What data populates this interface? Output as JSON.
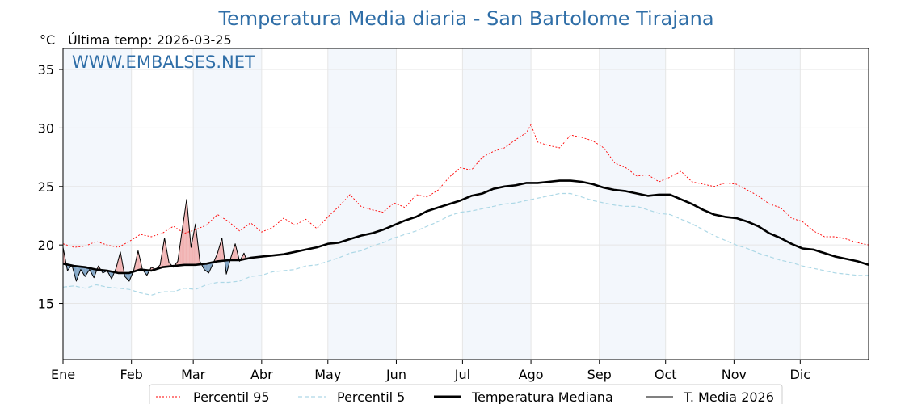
{
  "chart_data": {
    "type": "line",
    "title": "Temperatura Media diaria - San Bartolome Tirajana",
    "unit_label": "°C",
    "last_temp_label": "Última temp: 2026-03-25",
    "watermark": "WWW.EMBALSES.NET",
    "ylim": [
      10.2,
      36.8
    ],
    "xlim": [
      0,
      365
    ],
    "grid": true,
    "legend_position": "bottom",
    "yticks": [
      15,
      20,
      25,
      30,
      35
    ],
    "xticks": [
      {
        "day": 0,
        "label": "Ene"
      },
      {
        "day": 31,
        "label": "Feb"
      },
      {
        "day": 59,
        "label": "Mar"
      },
      {
        "day": 90,
        "label": "Abr"
      },
      {
        "day": 120,
        "label": "May"
      },
      {
        "day": 151,
        "label": "Jun"
      },
      {
        "day": 181,
        "label": "Jul"
      },
      {
        "day": 212,
        "label": "Ago"
      },
      {
        "day": 243,
        "label": "Sep"
      },
      {
        "day": 273,
        "label": "Oct"
      },
      {
        "day": 304,
        "label": "Nov"
      },
      {
        "day": 334,
        "label": "Dic"
      }
    ],
    "series": [
      {
        "name": "Percentil 95",
        "color": "#ff0000",
        "style": "dotted",
        "x": [
          0,
          5,
          10,
          15,
          20,
          25,
          30,
          35,
          40,
          45,
          50,
          55,
          60,
          65,
          70,
          75,
          80,
          85,
          90,
          95,
          100,
          105,
          110,
          115,
          120,
          125,
          130,
          135,
          140,
          145,
          150,
          155,
          160,
          165,
          170,
          175,
          180,
          185,
          190,
          195,
          200,
          205,
          210,
          212,
          215,
          220,
          225,
          230,
          235,
          240,
          245,
          250,
          255,
          260,
          265,
          270,
          275,
          280,
          285,
          290,
          295,
          300,
          305,
          310,
          315,
          320,
          325,
          330,
          335,
          340,
          345,
          350,
          355,
          360,
          365
        ],
        "values": [
          20.1,
          19.8,
          19.9,
          20.3,
          20.0,
          19.8,
          20.3,
          20.9,
          20.7,
          21.0,
          21.6,
          21.0,
          21.3,
          21.7,
          22.6,
          22.0,
          21.2,
          21.9,
          21.1,
          21.5,
          22.3,
          21.7,
          22.2,
          21.4,
          22.4,
          23.3,
          24.3,
          23.3,
          23.0,
          22.8,
          23.6,
          23.2,
          24.3,
          24.1,
          24.7,
          25.8,
          26.6,
          26.4,
          27.5,
          28.0,
          28.3,
          29.0,
          29.6,
          30.3,
          28.8,
          28.5,
          28.3,
          29.4,
          29.2,
          28.9,
          28.3,
          27.0,
          26.6,
          25.9,
          26.0,
          25.4,
          25.8,
          26.3,
          25.4,
          25.2,
          25.0,
          25.3,
          25.2,
          24.7,
          24.2,
          23.5,
          23.2,
          22.3,
          22.0,
          21.2,
          20.7,
          20.7,
          20.5,
          20.2,
          20.0
        ]
      },
      {
        "name": "Percentil 5",
        "color": "#add8e6",
        "style": "dashed",
        "x": [
          0,
          5,
          10,
          15,
          20,
          25,
          30,
          35,
          40,
          45,
          50,
          55,
          60,
          65,
          70,
          75,
          80,
          85,
          90,
          95,
          100,
          105,
          110,
          115,
          120,
          125,
          130,
          135,
          140,
          145,
          150,
          155,
          160,
          165,
          170,
          175,
          180,
          185,
          190,
          195,
          200,
          205,
          210,
          215,
          220,
          225,
          230,
          235,
          240,
          245,
          250,
          255,
          260,
          265,
          270,
          275,
          280,
          285,
          290,
          295,
          300,
          305,
          310,
          315,
          320,
          325,
          330,
          335,
          340,
          345,
          350,
          355,
          360,
          365
        ],
        "values": [
          16.4,
          16.5,
          16.3,
          16.6,
          16.4,
          16.3,
          16.2,
          15.9,
          15.7,
          16.0,
          16.0,
          16.3,
          16.2,
          16.6,
          16.8,
          16.8,
          16.9,
          17.3,
          17.4,
          17.7,
          17.8,
          17.9,
          18.2,
          18.3,
          18.6,
          18.9,
          19.3,
          19.5,
          19.9,
          20.2,
          20.6,
          20.9,
          21.2,
          21.6,
          22.0,
          22.5,
          22.8,
          22.9,
          23.1,
          23.3,
          23.5,
          23.6,
          23.8,
          24.0,
          24.2,
          24.4,
          24.4,
          24.1,
          23.8,
          23.6,
          23.4,
          23.3,
          23.3,
          23.0,
          22.7,
          22.6,
          22.2,
          21.8,
          21.3,
          20.8,
          20.4,
          20.0,
          19.7,
          19.3,
          19.0,
          18.7,
          18.5,
          18.2,
          18.0,
          17.8,
          17.6,
          17.5,
          17.4,
          17.4
        ]
      },
      {
        "name": "Temperatura Mediana",
        "color": "#000000",
        "style": "solid",
        "x": [
          0,
          5,
          10,
          15,
          20,
          25,
          30,
          35,
          40,
          45,
          50,
          55,
          60,
          65,
          70,
          75,
          80,
          85,
          90,
          95,
          100,
          105,
          110,
          115,
          120,
          125,
          130,
          135,
          140,
          145,
          150,
          155,
          160,
          165,
          170,
          175,
          180,
          185,
          190,
          195,
          200,
          205,
          210,
          215,
          220,
          225,
          230,
          235,
          240,
          245,
          250,
          255,
          260,
          265,
          270,
          275,
          280,
          285,
          290,
          295,
          300,
          305,
          310,
          315,
          320,
          325,
          330,
          335,
          340,
          345,
          350,
          355,
          360,
          365
        ],
        "values": [
          18.4,
          18.2,
          18.1,
          17.9,
          17.8,
          17.6,
          17.6,
          17.9,
          17.8,
          18.1,
          18.2,
          18.3,
          18.3,
          18.4,
          18.6,
          18.7,
          18.7,
          18.9,
          19.0,
          19.1,
          19.2,
          19.4,
          19.6,
          19.8,
          20.1,
          20.2,
          20.5,
          20.8,
          21.0,
          21.3,
          21.7,
          22.1,
          22.4,
          22.9,
          23.2,
          23.5,
          23.8,
          24.2,
          24.4,
          24.8,
          25.0,
          25.1,
          25.3,
          25.3,
          25.4,
          25.5,
          25.5,
          25.4,
          25.2,
          24.9,
          24.7,
          24.6,
          24.4,
          24.2,
          24.3,
          24.3,
          23.9,
          23.5,
          23.0,
          22.6,
          22.4,
          22.3,
          22.0,
          21.6,
          21.0,
          20.6,
          20.1,
          19.7,
          19.6,
          19.3,
          19.0,
          18.8,
          18.6,
          18.3
        ]
      },
      {
        "name": "T. Media 2026",
        "color": "#000000",
        "style": "solid-thin",
        "x": [
          0,
          2,
          4,
          6,
          8,
          10,
          12,
          14,
          16,
          18,
          20,
          22,
          24,
          26,
          28,
          30,
          32,
          34,
          36,
          38,
          40,
          42,
          44,
          46,
          48,
          50,
          52,
          54,
          56,
          58,
          60,
          62,
          64,
          66,
          68,
          70,
          72,
          74,
          76,
          78,
          80,
          82,
          83
        ],
        "values": [
          19.8,
          17.8,
          18.3,
          16.9,
          17.9,
          17.3,
          17.9,
          17.2,
          18.2,
          17.6,
          17.8,
          17.1,
          18.0,
          19.4,
          17.3,
          16.9,
          17.8,
          19.5,
          17.9,
          17.4,
          18.1,
          17.9,
          18.3,
          20.6,
          18.5,
          18.1,
          18.6,
          21.3,
          23.9,
          19.8,
          21.8,
          18.6,
          17.9,
          17.6,
          18.4,
          19.3,
          20.6,
          17.5,
          18.9,
          20.1,
          18.6,
          19.3,
          18.8
        ]
      }
    ]
  }
}
